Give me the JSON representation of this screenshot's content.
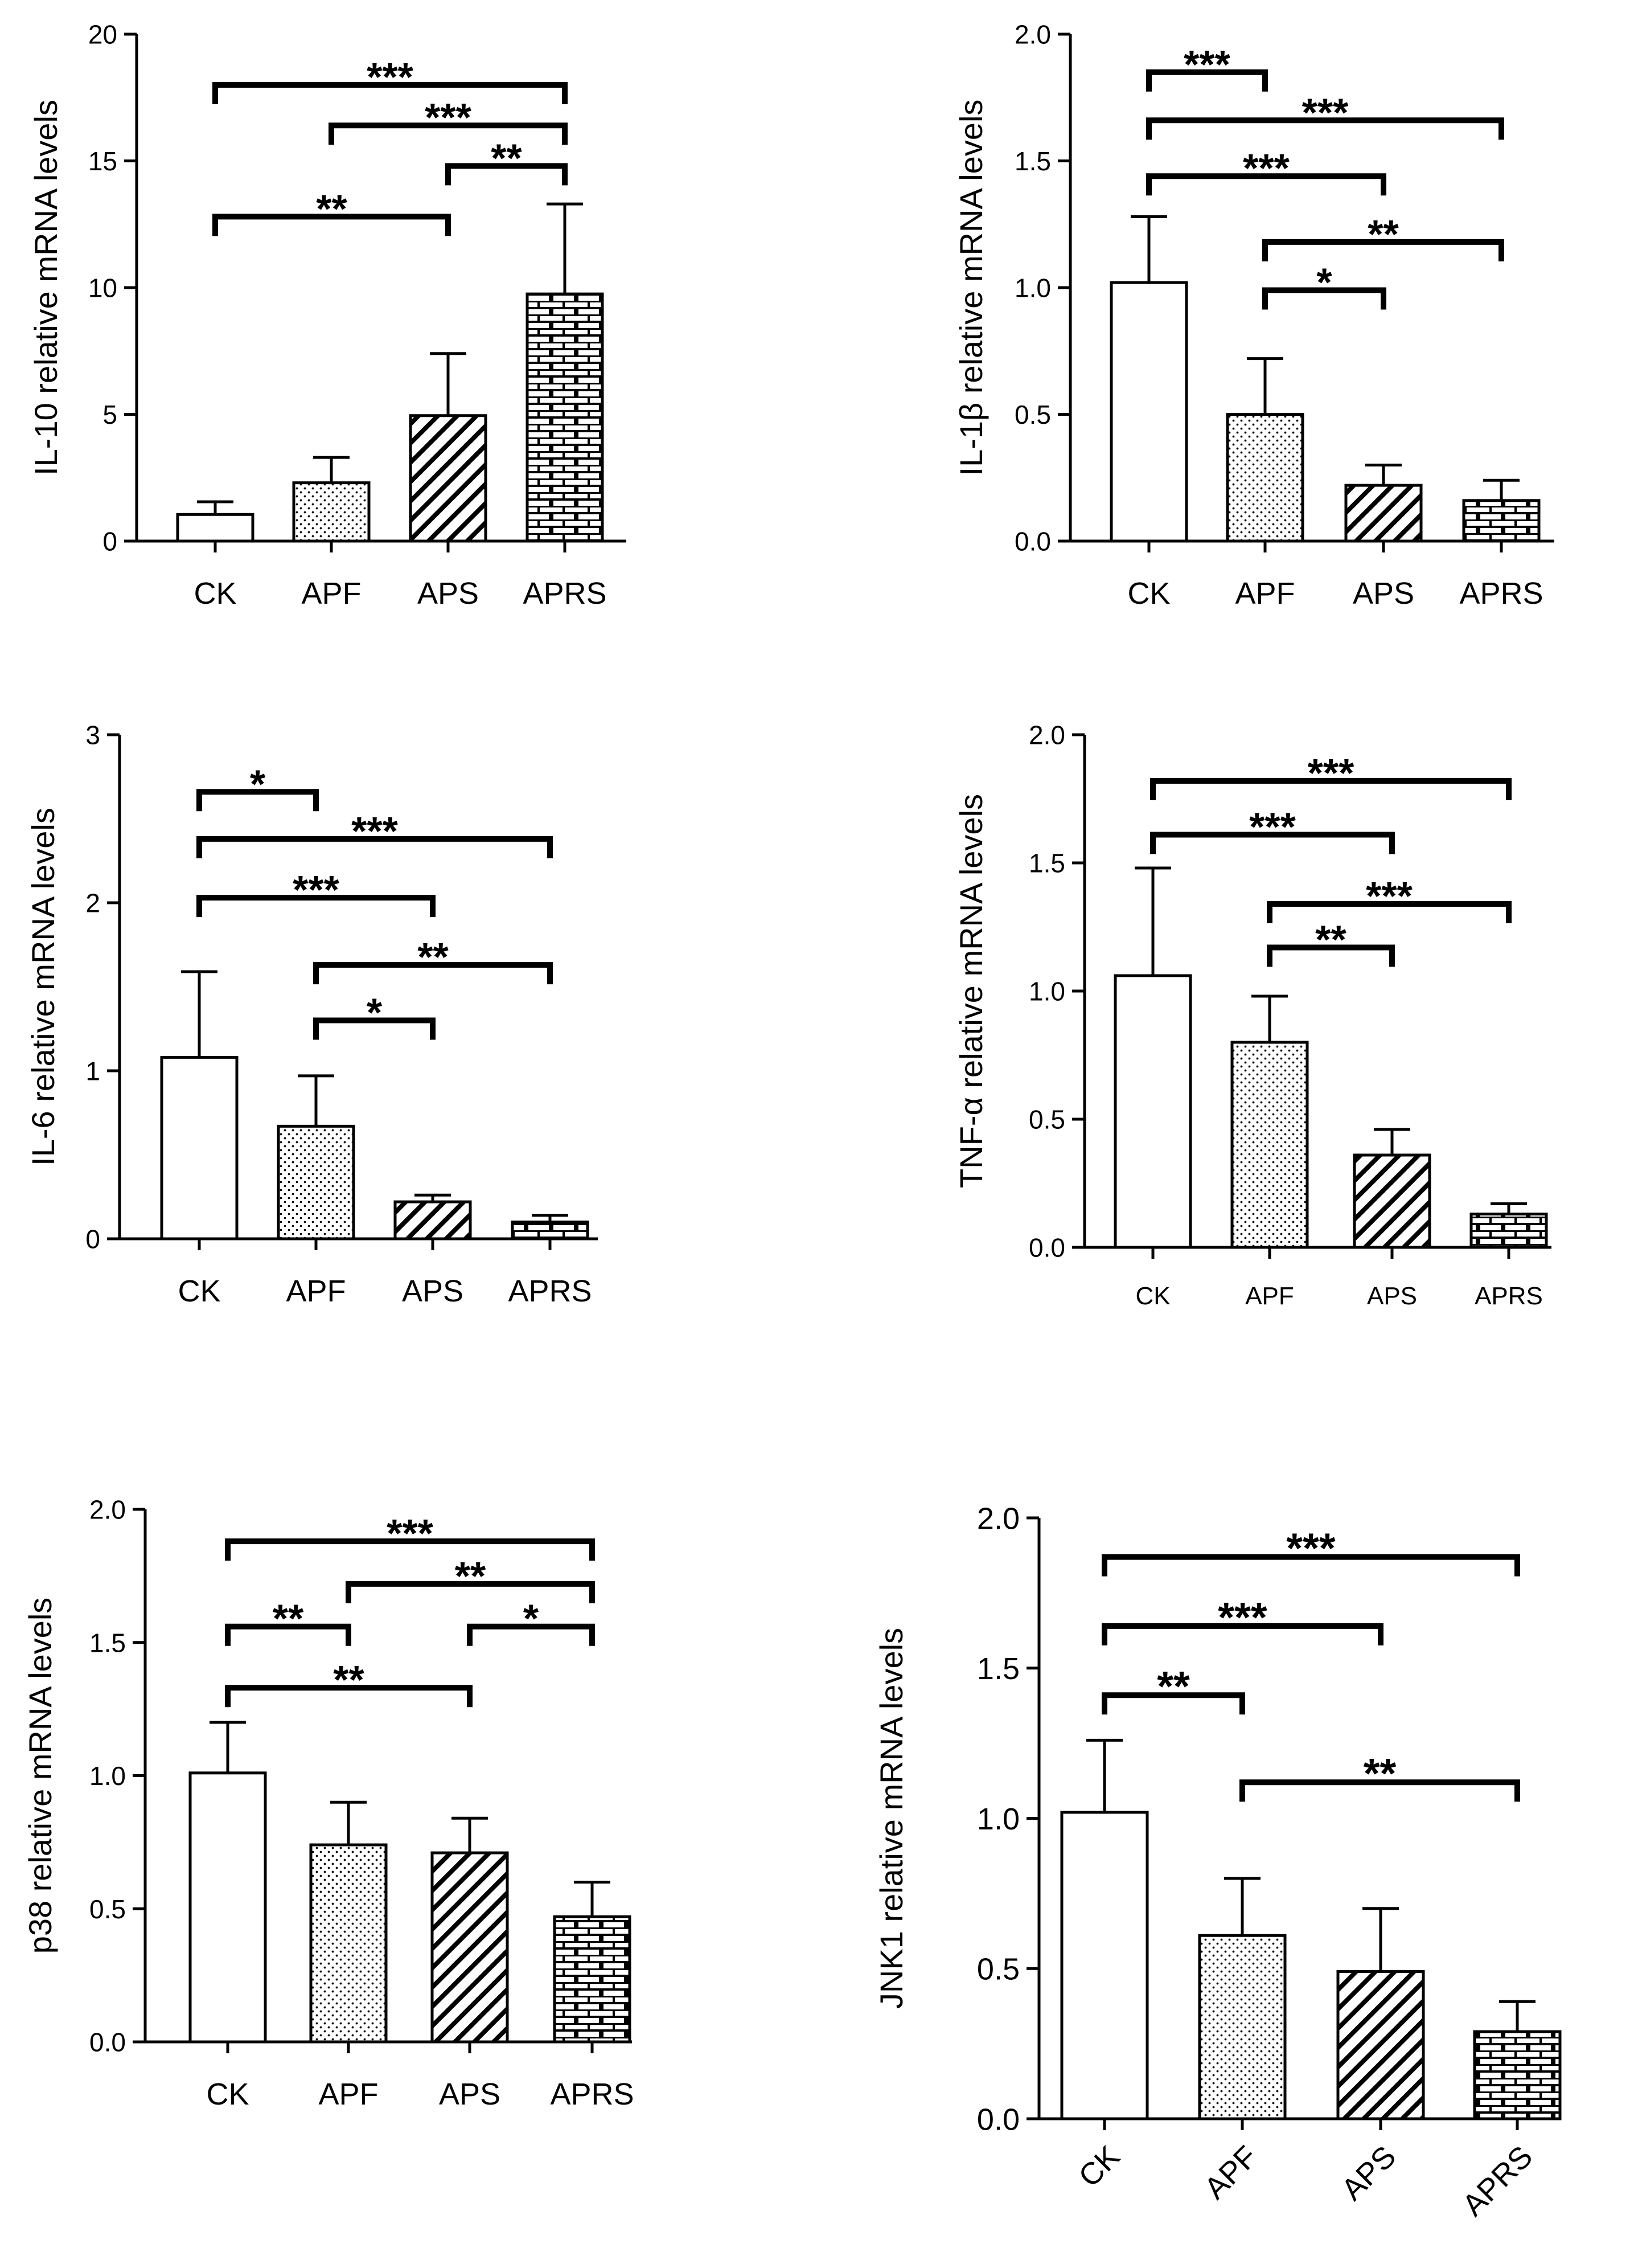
{
  "chart_data": [
    {
      "type": "bar",
      "id": "il10",
      "title": "",
      "xlabel": "",
      "ylabel": "IL-10 relative mRNA levels",
      "categories": [
        "CK",
        "APF",
        "APS",
        "APRS"
      ],
      "values": [
        1.05,
        2.3,
        4.95,
        9.75
      ],
      "errors": [
        0.5,
        1.0,
        2.45,
        3.55
      ],
      "ylim": [
        0,
        20
      ],
      "yticks": [
        "0",
        "5",
        "10",
        "15",
        "20"
      ],
      "ytick_values": [
        0,
        5,
        10,
        15,
        20
      ],
      "grid": false,
      "significance": [
        {
          "from": 0,
          "to": 3,
          "y": 18.0,
          "label": "***"
        },
        {
          "from": 1,
          "to": 3,
          "y": 16.4,
          "label": "***"
        },
        {
          "from": 2,
          "to": 3,
          "y": 14.8,
          "label": "**"
        },
        {
          "from": 0,
          "to": 2,
          "y": 12.8,
          "label": "**"
        }
      ]
    },
    {
      "type": "bar",
      "id": "il1b",
      "title": "",
      "xlabel": "",
      "ylabel": "IL-1β relative mRNA levels",
      "categories": [
        "CK",
        "APF",
        "APS",
        "APRS"
      ],
      "values": [
        1.02,
        0.5,
        0.22,
        0.16
      ],
      "errors": [
        0.26,
        0.22,
        0.08,
        0.08
      ],
      "ylim": [
        0,
        2.0
      ],
      "yticks": [
        "0.0",
        "0.5",
        "1.0",
        "1.5",
        "2.0"
      ],
      "ytick_values": [
        0,
        0.5,
        1.0,
        1.5,
        2.0
      ],
      "grid": false,
      "significance": [
        {
          "from": 0,
          "to": 1,
          "y": 1.85,
          "label": "***"
        },
        {
          "from": 0,
          "to": 3,
          "y": 1.66,
          "label": "***"
        },
        {
          "from": 0,
          "to": 2,
          "y": 1.44,
          "label": "***"
        },
        {
          "from": 1,
          "to": 3,
          "y": 1.18,
          "label": "**"
        },
        {
          "from": 1,
          "to": 2,
          "y": 0.99,
          "label": "*"
        }
      ]
    },
    {
      "type": "bar",
      "id": "il6",
      "title": "",
      "xlabel": "",
      "ylabel": "IL-6 relative mRNA levels",
      "categories": [
        "CK",
        "APF",
        "APS",
        "APRS"
      ],
      "values": [
        1.08,
        0.67,
        0.22,
        0.1
      ],
      "errors": [
        0.51,
        0.3,
        0.04,
        0.04
      ],
      "ylim": [
        0,
        3
      ],
      "yticks": [
        "0",
        "1",
        "2",
        "3"
      ],
      "ytick_values": [
        0,
        1,
        2,
        3
      ],
      "grid": false,
      "significance": [
        {
          "from": 0,
          "to": 1,
          "y": 2.66,
          "label": "*"
        },
        {
          "from": 0,
          "to": 3,
          "y": 2.38,
          "label": "***"
        },
        {
          "from": 0,
          "to": 2,
          "y": 2.03,
          "label": "***"
        },
        {
          "from": 1,
          "to": 3,
          "y": 1.63,
          "label": "**"
        },
        {
          "from": 1,
          "to": 2,
          "y": 1.3,
          "label": "*"
        }
      ]
    },
    {
      "type": "bar",
      "id": "tnfa",
      "title": "",
      "xlabel": "",
      "ylabel": "TNF-α relative mRNA levels",
      "categories": [
        "CK",
        "APF",
        "APS",
        "APRS"
      ],
      "values": [
        1.06,
        0.8,
        0.36,
        0.13
      ],
      "errors": [
        0.42,
        0.18,
        0.1,
        0.04
      ],
      "ylim": [
        0,
        2.0
      ],
      "yticks": [
        "0.0",
        "0.5",
        "1.0",
        "1.5",
        "2.0"
      ],
      "ytick_values": [
        0,
        0.5,
        1.0,
        1.5,
        2.0
      ],
      "grid": false,
      "significance": [
        {
          "from": 0,
          "to": 3,
          "y": 1.82,
          "label": "***"
        },
        {
          "from": 0,
          "to": 2,
          "y": 1.61,
          "label": "***"
        },
        {
          "from": 1,
          "to": 3,
          "y": 1.34,
          "label": "***"
        },
        {
          "from": 1,
          "to": 2,
          "y": 1.17,
          "label": "**"
        }
      ]
    },
    {
      "type": "bar",
      "id": "p38",
      "title": "",
      "xlabel": "",
      "ylabel": "p38 relative mRNA levels",
      "categories": [
        "CK",
        "APF",
        "APS",
        "APRS"
      ],
      "values": [
        1.01,
        0.74,
        0.71,
        0.47
      ],
      "errors": [
        0.19,
        0.16,
        0.13,
        0.13
      ],
      "ylim": [
        0,
        2.0
      ],
      "yticks": [
        "0.0",
        "0.5",
        "1.0",
        "1.5",
        "2.0"
      ],
      "ytick_values": [
        0,
        0.5,
        1.0,
        1.5,
        2.0
      ],
      "grid": false,
      "significance": [
        {
          "from": 0,
          "to": 3,
          "y": 1.88,
          "label": "***"
        },
        {
          "from": 1,
          "to": 3,
          "y": 1.72,
          "label": "**"
        },
        {
          "from": 0,
          "to": 1,
          "y": 1.56,
          "label": "**"
        },
        {
          "from": 2,
          "to": 3,
          "y": 1.56,
          "label": "*"
        },
        {
          "from": 0,
          "to": 2,
          "y": 1.33,
          "label": "**"
        }
      ]
    },
    {
      "type": "bar",
      "id": "jnk1",
      "title": "",
      "xlabel": "",
      "ylabel": "JNK1 relative mRNA levels",
      "categories": [
        "CK",
        "APF",
        "APS",
        "APRS"
      ],
      "values": [
        1.02,
        0.61,
        0.49,
        0.29
      ],
      "errors": [
        0.24,
        0.19,
        0.21,
        0.1
      ],
      "ylim": [
        0,
        2.0
      ],
      "yticks": [
        "0.0",
        "0.5",
        "1.0",
        "1.5",
        "2.0"
      ],
      "ytick_values": [
        0,
        0.5,
        1.0,
        1.5,
        2.0
      ],
      "grid": false,
      "rotated_xticks": true,
      "significance": [
        {
          "from": 0,
          "to": 3,
          "y": 1.87,
          "label": "***"
        },
        {
          "from": 0,
          "to": 2,
          "y": 1.64,
          "label": "***"
        },
        {
          "from": 0,
          "to": 1,
          "y": 1.41,
          "label": "**"
        },
        {
          "from": 1,
          "to": 3,
          "y": 1.12,
          "label": "**"
        }
      ]
    }
  ],
  "patterns": [
    "open",
    "dotted",
    "hatched",
    "brick"
  ]
}
